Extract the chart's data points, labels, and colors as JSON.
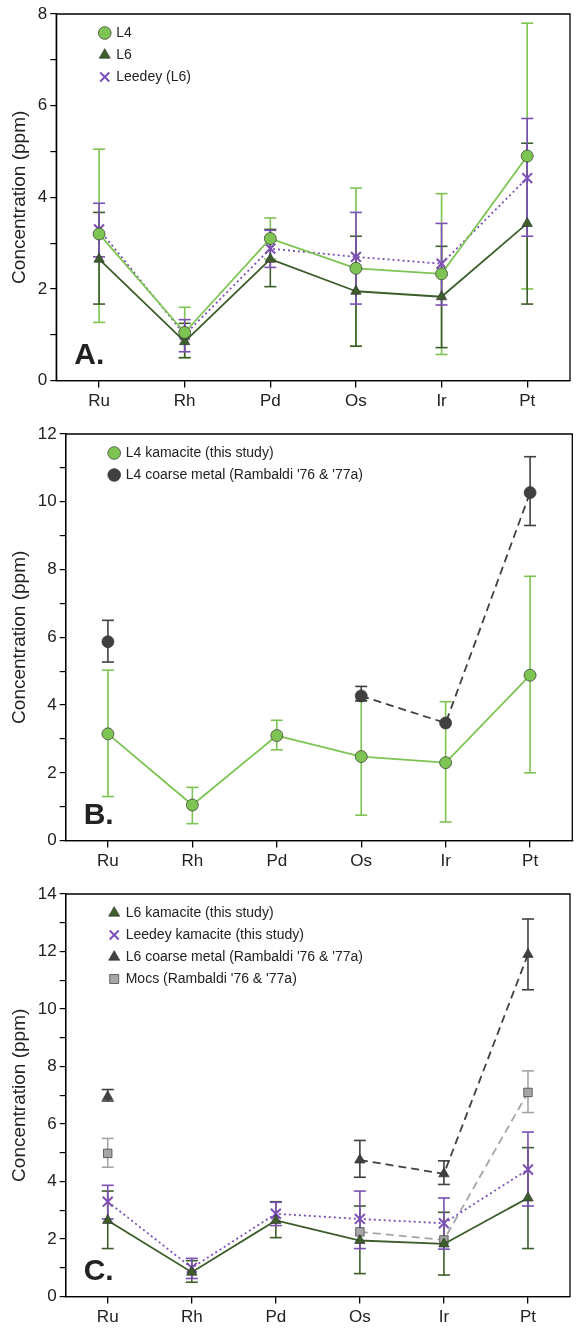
{
  "chart_data": [
    {
      "type": "line",
      "ylabel": "Concentration (ppm)",
      "annotations": [
        "A."
      ],
      "categories": [
        "Ru",
        "Rh",
        "Pd",
        "Os",
        "Ir",
        "Pt"
      ],
      "ylim": [
        0,
        8
      ],
      "yticks": [
        0,
        {
          "value": 1,
          "label": null
        },
        2,
        {
          "value": 3,
          "label": null
        },
        4,
        {
          "value": 5,
          "label": null
        },
        6,
        {
          "value": 7,
          "label": null
        },
        8
      ],
      "grid": false,
      "legend": "top left",
      "series": [
        {
          "name": "L4",
          "color": "#7dc452",
          "marker": "circle",
          "line_style": "solid",
          "values": [
            3.2,
            1.05,
            3.1,
            2.45,
            2.33,
            4.9
          ],
          "errors": [
            [
              1.27,
              5.05
            ],
            [
              0.5,
              1.6
            ],
            [
              2.65,
              3.55
            ],
            [
              0.75,
              4.2
            ],
            [
              0.57,
              4.08
            ],
            [
              2.0,
              7.8
            ]
          ]
        },
        {
          "name": "L6",
          "color": "#3d5e2a",
          "marker": "triangle",
          "line_style": "solid",
          "values": [
            2.65,
            0.85,
            2.65,
            1.95,
            1.83,
            3.43
          ],
          "errors": [
            [
              1.67,
              3.67
            ],
            [
              0.5,
              1.25
            ],
            [
              2.05,
              3.3
            ],
            [
              0.75,
              3.15
            ],
            [
              0.72,
              2.93
            ],
            [
              1.67,
              5.18
            ]
          ]
        },
        {
          "name": "Leedey (L6)",
          "color": "#7b4fb5",
          "marker": "cross",
          "line_style": "dotted",
          "values": [
            3.3,
            1.0,
            2.88,
            2.7,
            2.55,
            4.42
          ],
          "errors": [
            [
              2.7,
              3.87
            ],
            [
              0.63,
              1.33
            ],
            [
              2.47,
              3.28
            ],
            [
              1.67,
              3.67
            ],
            [
              1.65,
              3.43
            ],
            [
              3.15,
              5.72
            ]
          ]
        }
      ]
    },
    {
      "type": "line",
      "ylabel": "Concentration (ppm)",
      "annotations": [
        "B."
      ],
      "categories": [
        "Ru",
        "Rh",
        "Pd",
        "Os",
        "Ir",
        "Pt"
      ],
      "ylim": [
        0,
        12
      ],
      "yticks": [
        0,
        {
          "value": 1,
          "label": null
        },
        2,
        {
          "value": 3,
          "label": null
        },
        4,
        {
          "value": 5,
          "label": null
        },
        6,
        {
          "value": 7,
          "label": null
        },
        8,
        {
          "value": 9,
          "label": null
        },
        10,
        {
          "value": 11,
          "label": null
        },
        12
      ],
      "grid": false,
      "legend": "top left",
      "series": [
        {
          "name": "L4 kamacite (this study)",
          "color": "#7dc452",
          "marker": "circle",
          "line_style": "solid",
          "values": [
            3.15,
            1.05,
            3.1,
            2.48,
            2.3,
            4.88
          ],
          "errors": [
            [
              1.3,
              5.03
            ],
            [
              0.5,
              1.57
            ],
            [
              2.68,
              3.55
            ],
            [
              0.75,
              4.13
            ],
            [
              0.55,
              4.1
            ],
            [
              2.0,
              7.8
            ]
          ]
        },
        {
          "name": "L4 coarse metal (Rambaldi '76 & '77a)",
          "color": "#404040",
          "marker": "circle",
          "line_style": "dashed",
          "values": [
            5.87,
            null,
            null,
            4.27,
            3.47,
            10.27
          ],
          "errors": [
            [
              5.27,
              6.5
            ],
            null,
            null,
            [
              4.12,
              4.55
            ],
            null,
            [
              9.3,
              11.33
            ]
          ]
        }
      ]
    },
    {
      "type": "line",
      "ylabel": "Concentration (ppm)",
      "annotations": [
        "C."
      ],
      "categories": [
        "Ru",
        "Rh",
        "Pd",
        "Os",
        "Ir",
        "Pt"
      ],
      "ylim": [
        0,
        14
      ],
      "yticks": [
        0,
        {
          "value": 1,
          "label": null
        },
        2,
        {
          "value": 3,
          "label": null
        },
        4,
        {
          "value": 5,
          "label": null
        },
        6,
        {
          "value": 7,
          "label": null
        },
        8,
        {
          "value": 9,
          "label": null
        },
        10,
        {
          "value": 11,
          "label": null
        },
        12,
        {
          "value": 13,
          "label": null
        },
        14
      ],
      "grid": false,
      "legend": "top left",
      "series": [
        {
          "name": "L6 kamacite (this study)",
          "color": "#3d5e2a",
          "marker": "triangle",
          "line_style": "solid",
          "values": [
            2.65,
            0.85,
            2.65,
            1.95,
            1.83,
            3.43
          ],
          "errors": [
            [
              1.67,
              3.67
            ],
            [
              0.5,
              1.25
            ],
            [
              2.05,
              3.3
            ],
            [
              0.8,
              3.15
            ],
            [
              0.75,
              2.93
            ],
            [
              1.67,
              5.18
            ]
          ]
        },
        {
          "name": "Leedey kamacite (this study)",
          "color": "#7b4fb5",
          "marker": "cross",
          "line_style": "dotted",
          "values": [
            3.3,
            1.0,
            2.88,
            2.7,
            2.55,
            4.42
          ],
          "errors": [
            [
              2.7,
              3.87
            ],
            [
              0.63,
              1.33
            ],
            [
              2.47,
              3.28
            ],
            [
              1.67,
              3.67
            ],
            [
              1.65,
              3.43
            ],
            [
              3.15,
              5.72
            ]
          ]
        },
        {
          "name": "L6 coarse metal (Rambaldi '76 & '77a)",
          "color": "#404040",
          "marker": "triangle",
          "line_style": "dashed",
          "values": [
            6.95,
            null,
            null,
            4.75,
            4.27,
            11.9
          ],
          "errors": [
            [
              6.8,
              7.2
            ],
            null,
            null,
            [
              4.15,
              5.43
            ],
            [
              3.9,
              4.72
            ],
            [
              10.67,
              13.13
            ]
          ]
        },
        {
          "name": "Mocs (Rambaldi '76 & '77a)",
          "color": "#a6a6a6",
          "marker": "square",
          "line_style": "dashed",
          "values": [
            4.98,
            null,
            null,
            2.25,
            1.97,
            7.1
          ],
          "errors": [
            [
              4.5,
              5.5
            ],
            null,
            null,
            null,
            null,
            [
              6.4,
              7.85
            ]
          ]
        }
      ]
    }
  ]
}
